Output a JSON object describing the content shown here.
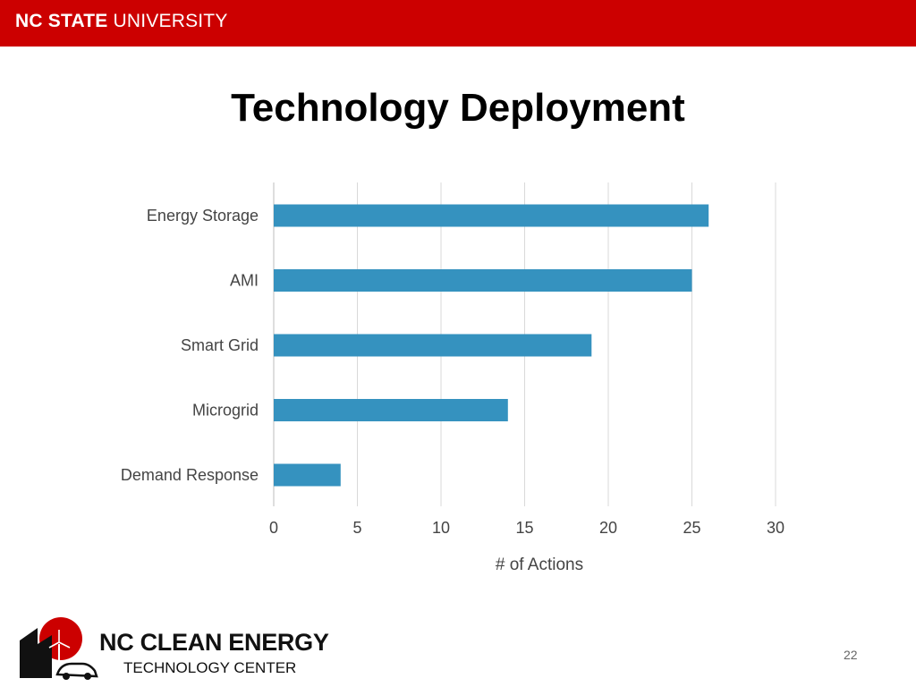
{
  "header": {
    "brand_bold": "NC STATE",
    "brand_rest": " UNIVERSITY",
    "bar_color": "#cc0000"
  },
  "slide": {
    "title": "Technology Deployment",
    "page_number": "22"
  },
  "footer": {
    "logo_line1": "NC CLEAN ENERGY",
    "logo_line2": "TECHNOLOGY CENTER",
    "logo_icon": "wind-turbine-car-house-icon"
  },
  "chart_data": {
    "type": "bar",
    "orientation": "horizontal",
    "categories": [
      "Energy Storage",
      "AMI",
      "Smart Grid",
      "Microgrid",
      "Demand Response"
    ],
    "values": [
      26,
      25,
      19,
      14,
      4
    ],
    "xlabel": "# of Actions",
    "ylabel": "",
    "xlim": [
      0,
      30
    ],
    "xticks": [
      "0",
      "5",
      "10",
      "15",
      "20",
      "25",
      "30"
    ],
    "grid": true,
    "legend": "none",
    "bar_color": "#3592bf"
  }
}
